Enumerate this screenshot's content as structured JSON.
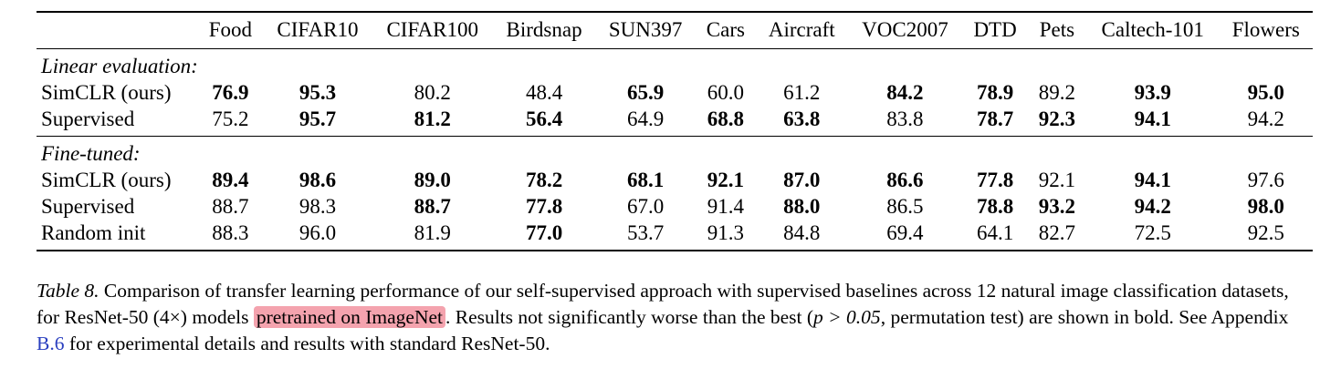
{
  "table": {
    "headers": [
      "",
      "Food",
      "CIFAR10",
      "CIFAR100",
      "Birdsnap",
      "SUN397",
      "Cars",
      "Aircraft",
      "VOC2007",
      "DTD",
      "Pets",
      "Caltech-101",
      "Flowers"
    ],
    "sections": [
      {
        "label": "Linear evaluation:",
        "rows": [
          {
            "method": "SimCLR (ours)",
            "values": [
              "76.9",
              "95.3",
              "80.2",
              "48.4",
              "65.9",
              "60.0",
              "61.2",
              "84.2",
              "78.9",
              "89.2",
              "93.9",
              "95.0"
            ],
            "bold": [
              true,
              true,
              false,
              false,
              true,
              false,
              false,
              true,
              true,
              false,
              true,
              true
            ]
          },
          {
            "method": "Supervised",
            "values": [
              "75.2",
              "95.7",
              "81.2",
              "56.4",
              "64.9",
              "68.8",
              "63.8",
              "83.8",
              "78.7",
              "92.3",
              "94.1",
              "94.2"
            ],
            "bold": [
              false,
              true,
              true,
              true,
              false,
              true,
              true,
              false,
              true,
              true,
              true,
              false
            ]
          }
        ]
      },
      {
        "label": "Fine-tuned:",
        "rows": [
          {
            "method": "SimCLR (ours)",
            "values": [
              "89.4",
              "98.6",
              "89.0",
              "78.2",
              "68.1",
              "92.1",
              "87.0",
              "86.6",
              "77.8",
              "92.1",
              "94.1",
              "97.6"
            ],
            "bold": [
              true,
              true,
              true,
              true,
              true,
              true,
              true,
              true,
              true,
              false,
              true,
              false
            ]
          },
          {
            "method": "Supervised",
            "values": [
              "88.7",
              "98.3",
              "88.7",
              "77.8",
              "67.0",
              "91.4",
              "88.0",
              "86.5",
              "78.8",
              "93.2",
              "94.2",
              "98.0"
            ],
            "bold": [
              false,
              false,
              true,
              true,
              false,
              false,
              true,
              false,
              true,
              true,
              true,
              true
            ]
          },
          {
            "method": "Random init",
            "values": [
              "88.3",
              "96.0",
              "81.9",
              "77.0",
              "53.7",
              "91.3",
              "84.8",
              "69.4",
              "64.1",
              "82.7",
              "72.5",
              "92.5"
            ],
            "bold": [
              false,
              false,
              false,
              true,
              false,
              false,
              false,
              false,
              false,
              false,
              false,
              false
            ]
          }
        ]
      }
    ]
  },
  "caption": {
    "label": "Table 8.",
    "text1": " Comparison of transfer learning performance of our self-supervised approach with supervised baselines across 12 natural image classification datasets, for ResNet-50 (4×) models ",
    "highlight": "pretrained on ImageNet",
    "text2": ". Results not significantly worse than the best (",
    "math": "p > 0.05",
    "text3": ", permutation test) are shown in bold. See Appendix ",
    "link": "B.6",
    "text4": " for experimental details and results with standard ResNet-50."
  },
  "colors": {
    "highlight": "#f4a3ae",
    "link": "#2a3fbf"
  }
}
